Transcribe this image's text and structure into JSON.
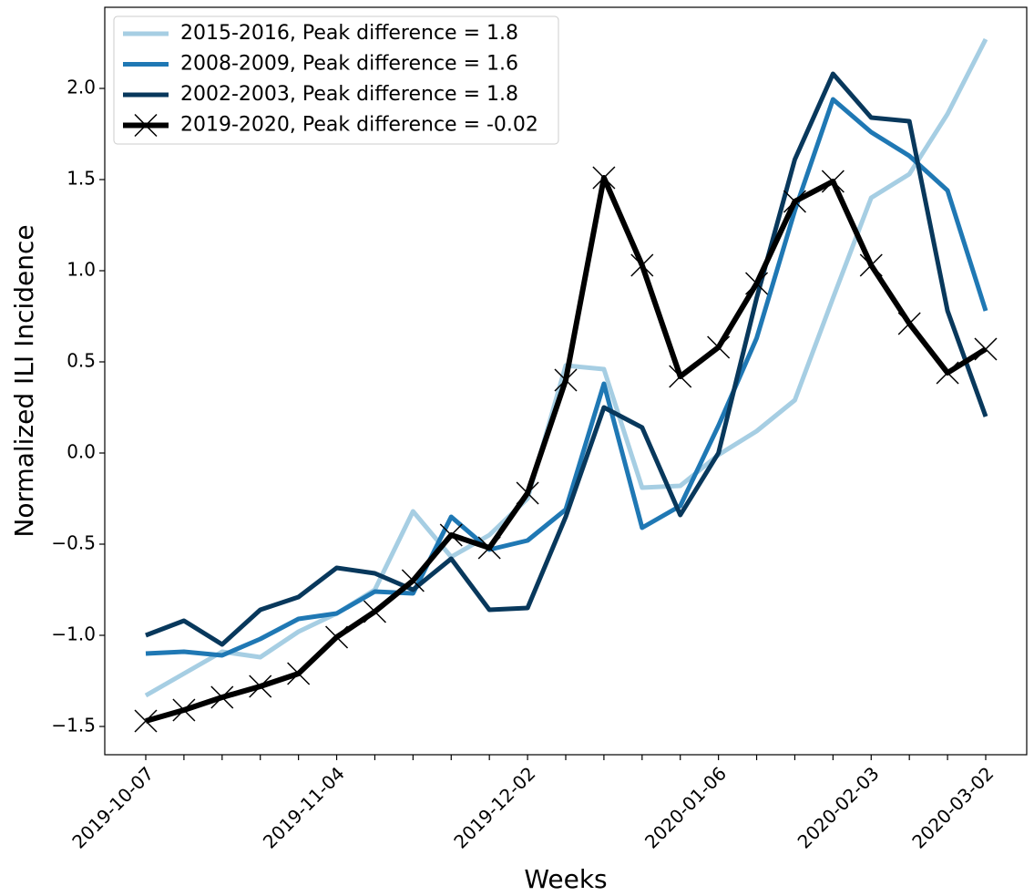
{
  "chart_data": {
    "type": "line",
    "x_label": "Weeks",
    "y_label": "Normalized ILI Incidence",
    "categories": [
      "2019-10-07",
      null,
      null,
      null,
      null,
      "2019-11-04",
      null,
      null,
      null,
      null,
      "2019-12-02",
      null,
      null,
      null,
      null,
      "2020-01-06",
      null,
      null,
      null,
      "2020-02-03",
      null,
      null,
      "2020-03-02"
    ],
    "series": [
      {
        "name": "2015-2016, Peak difference = 1.8",
        "color": "#a6cee3",
        "values": [
          -1.33,
          -1.21,
          -1.09,
          -1.12,
          -0.98,
          -0.88,
          -0.75,
          -0.32,
          -0.57,
          -0.45,
          -0.25,
          0.48,
          0.46,
          -0.19,
          -0.18,
          -0.01,
          0.12,
          0.29,
          0.85,
          1.4,
          1.53,
          1.86,
          2.27
        ]
      },
      {
        "name": "2008-2009, Peak difference = 1.6",
        "color": "#1f78b4",
        "values": [
          -1.1,
          -1.09,
          -1.11,
          -1.02,
          -0.91,
          -0.88,
          -0.76,
          -0.77,
          -0.35,
          -0.53,
          -0.48,
          -0.31,
          0.38,
          -0.41,
          -0.29,
          0.15,
          0.63,
          1.33,
          1.94,
          1.76,
          1.63,
          1.44,
          0.78
        ]
      },
      {
        "name": "2002-2003, Peak difference = 1.8",
        "color": "#08385c",
        "values": [
          -1.0,
          -0.92,
          -1.05,
          -0.86,
          -0.79,
          -0.63,
          -0.66,
          -0.75,
          -0.58,
          -0.86,
          -0.85,
          -0.35,
          0.25,
          0.14,
          -0.34,
          0.0,
          0.85,
          1.61,
          2.08,
          1.84,
          1.82,
          0.78,
          0.2
        ]
      },
      {
        "name": "2019-2020, Peak difference = -0.02",
        "color": "#000000",
        "marker": "x",
        "values": [
          -1.47,
          -1.41,
          -1.34,
          -1.28,
          -1.21,
          -1.01,
          -0.87,
          -0.7,
          -0.45,
          -0.52,
          -0.22,
          0.4,
          1.51,
          1.03,
          0.42,
          0.58,
          0.93,
          1.38,
          1.49,
          1.03,
          0.71,
          0.44,
          0.57
        ]
      }
    ],
    "ylim": [
      -1.655,
      2.445
    ],
    "yticks": [
      {
        "value": -1.5,
        "label": "−1.5"
      },
      {
        "value": -1.0,
        "label": "−1.0"
      },
      {
        "value": -0.5,
        "label": "−0.5"
      },
      {
        "value": 0,
        "label": "0.0"
      },
      0.5,
      {
        "value": 1.0,
        "label": "1.0"
      },
      1.5,
      {
        "value": 2.0,
        "label": "2.0"
      }
    ],
    "legend": "upper left",
    "grid": false
  }
}
